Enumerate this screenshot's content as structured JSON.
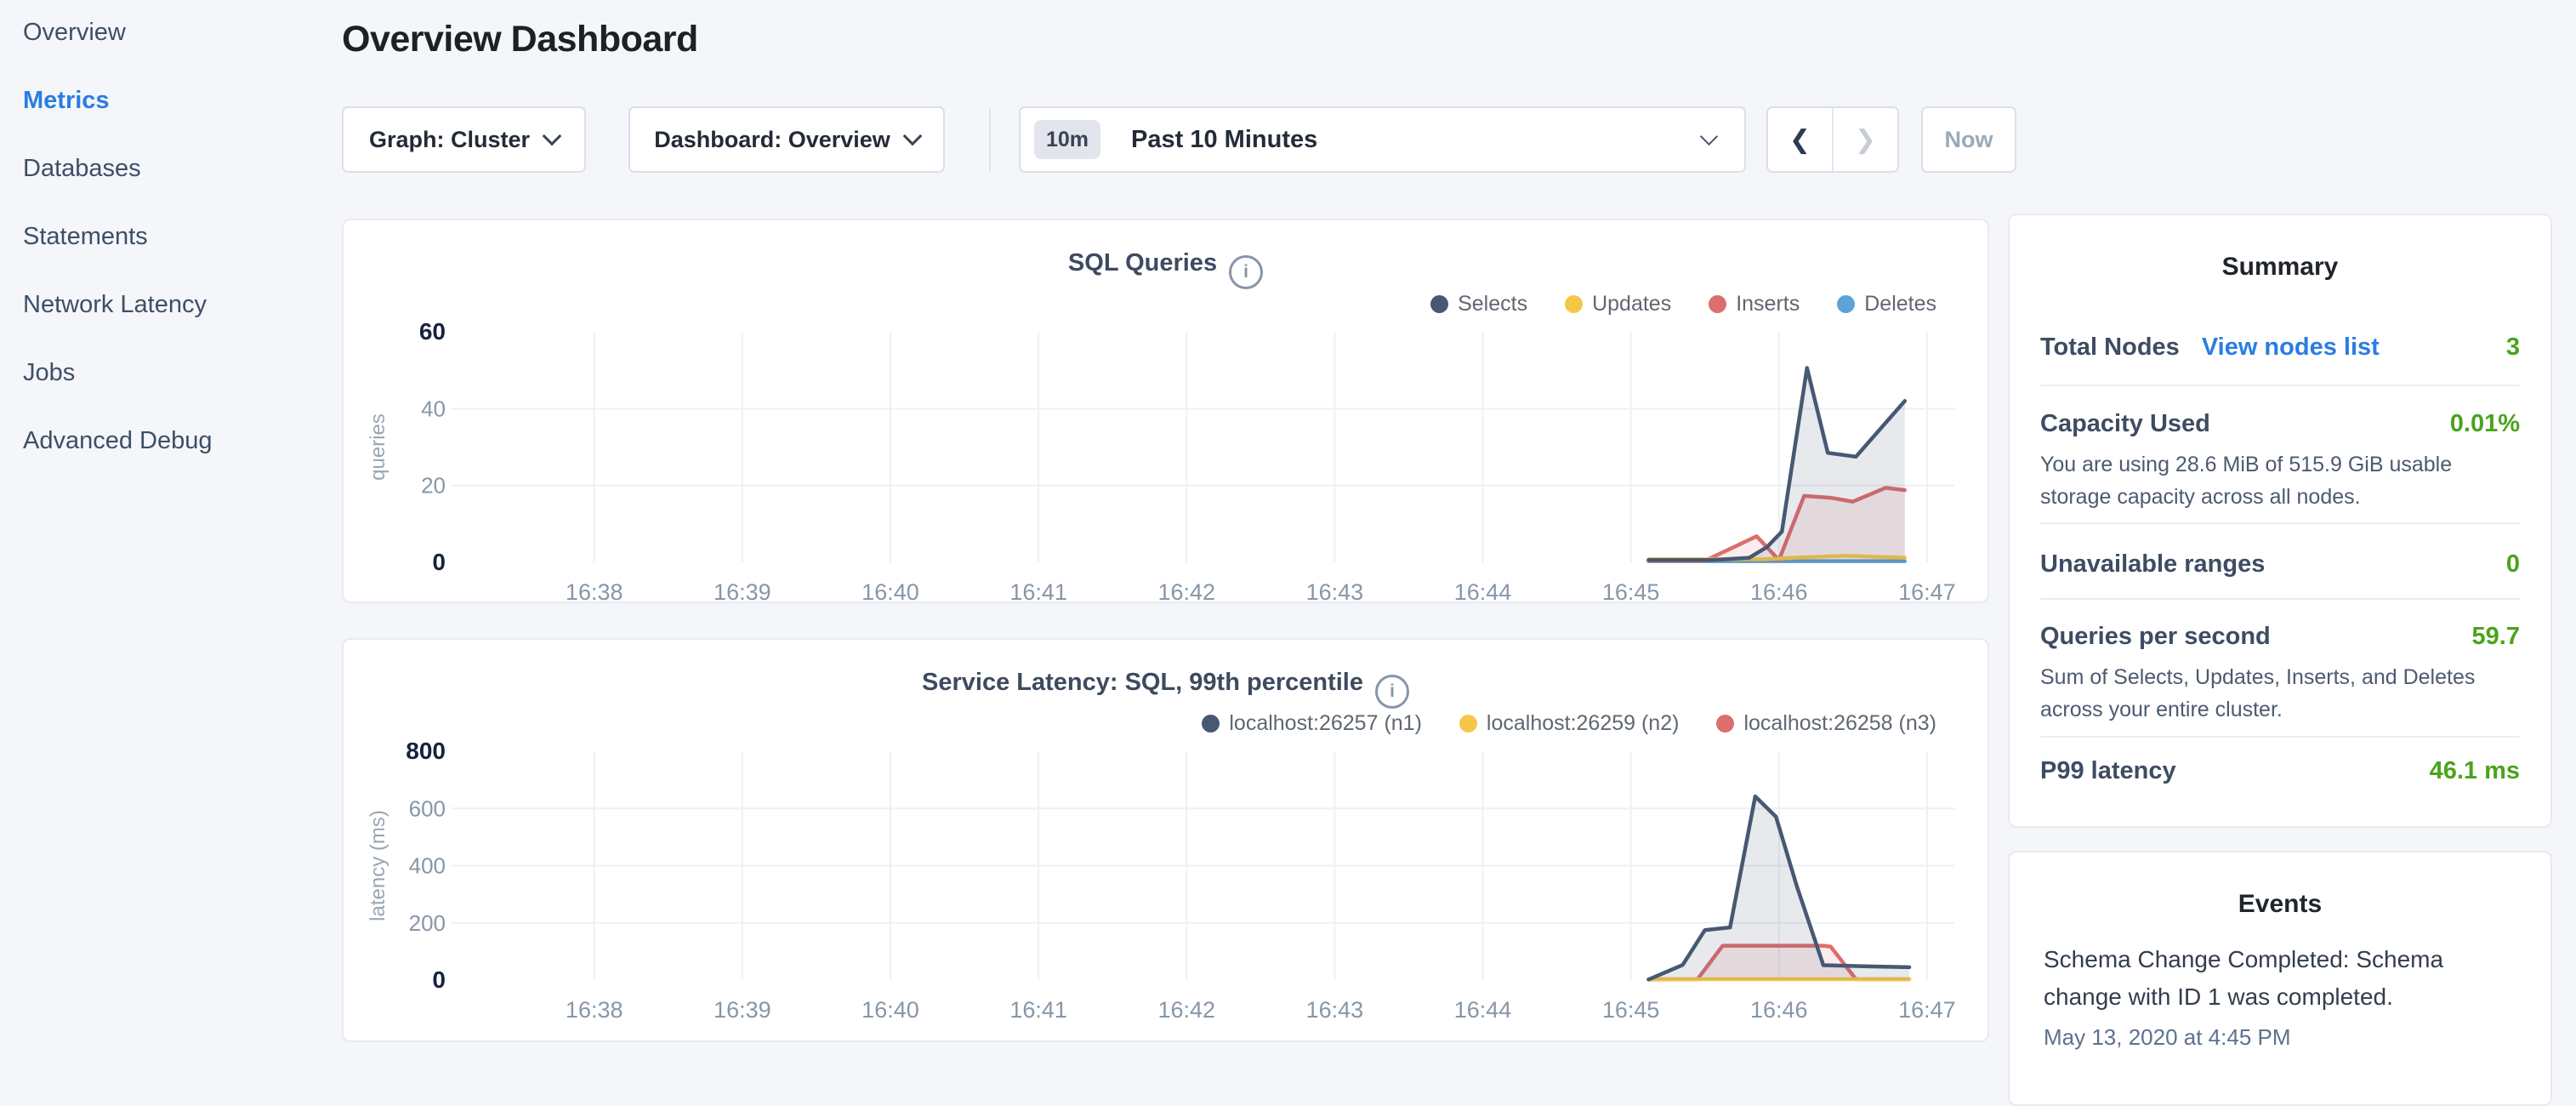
{
  "sidebar": {
    "items": [
      {
        "label": "Overview",
        "active": false
      },
      {
        "label": "Metrics",
        "active": true
      },
      {
        "label": "Databases",
        "active": false
      },
      {
        "label": "Statements",
        "active": false
      },
      {
        "label": "Network Latency",
        "active": false
      },
      {
        "label": "Jobs",
        "active": false
      },
      {
        "label": "Advanced Debug",
        "active": false
      }
    ]
  },
  "header": {
    "title": "Overview Dashboard"
  },
  "toolbar": {
    "graph_dropdown": {
      "label": "Graph: Cluster"
    },
    "dashboard_dropdown": {
      "label": "Dashboard: Overview"
    },
    "time_picker": {
      "badge": "10m",
      "label": "Past 10 Minutes"
    },
    "now_label": "Now",
    "icons": {
      "prev": "❮",
      "next": "❯",
      "info": "i"
    }
  },
  "colors": {
    "accent_blue": "#2a7de1",
    "positive_green": "#4aa31c",
    "series_navy": "#475872",
    "series_yellow": "#f4c748",
    "series_red": "#dd6e6e",
    "series_blue": "#5ba3d8"
  },
  "summary": {
    "title": "Summary",
    "rows": [
      {
        "label": "Total Nodes",
        "link": "View nodes list",
        "value": "3"
      },
      {
        "label": "Capacity Used",
        "value": "0.01%",
        "description": "You are using 28.6 MiB of 515.9 GiB usable storage capacity across all nodes."
      },
      {
        "label": "Unavailable ranges",
        "value": "0"
      },
      {
        "label": "Queries per second",
        "value": "59.7",
        "description": "Sum of Selects, Updates, Inserts, and Deletes across your entire cluster."
      },
      {
        "label": "P99 latency",
        "value": "46.1 ms"
      }
    ]
  },
  "events": {
    "title": "Events",
    "items": [
      {
        "text": "Schema Change Completed: Schema change with ID 1 was completed.",
        "timestamp": "May 13, 2020 at 4:45 PM"
      }
    ]
  },
  "chart_data": [
    {
      "type": "line",
      "title": "SQL Queries",
      "ylabel": "queries",
      "xlabel": "",
      "grid": true,
      "legend_position": "top-right",
      "xlim": [
        37.1,
        47.15
      ],
      "ylim": [
        0,
        60
      ],
      "y_ticks": [
        0,
        20,
        40,
        60
      ],
      "x_ticks": [
        {
          "value": 38,
          "label": "16:38"
        },
        {
          "value": 39,
          "label": "16:39"
        },
        {
          "value": 40,
          "label": "16:40"
        },
        {
          "value": 41,
          "label": "16:41"
        },
        {
          "value": 42,
          "label": "16:42"
        },
        {
          "value": 43,
          "label": "16:43"
        },
        {
          "value": 44,
          "label": "16:44"
        },
        {
          "value": 45,
          "label": "16:45"
        },
        {
          "value": 46,
          "label": "16:46"
        },
        {
          "value": 47,
          "label": "16:47"
        }
      ],
      "series": [
        {
          "name": "Selects",
          "color": "#475872",
          "fill": "rgba(71,88,114,0.13)",
          "points": [
            [
              45.12,
              0.6
            ],
            [
              45.55,
              0.6
            ],
            [
              45.8,
              1.2
            ],
            [
              45.92,
              4
            ],
            [
              46.02,
              8
            ],
            [
              46.19,
              50.6
            ],
            [
              46.33,
              28.5
            ],
            [
              46.52,
              27.5
            ],
            [
              46.85,
              42
            ]
          ]
        },
        {
          "name": "Updates",
          "color": "#f4c748",
          "fill": "none",
          "points": [
            [
              45.12,
              0.8
            ],
            [
              45.9,
              0.8
            ],
            [
              46.1,
              1.2
            ],
            [
              46.45,
              1.7
            ],
            [
              46.85,
              1.2
            ]
          ]
        },
        {
          "name": "Inserts",
          "color": "#dd6e6e",
          "fill": "rgba(221,110,110,0.12)",
          "points": [
            [
              45.12,
              0.4
            ],
            [
              45.5,
              0.4
            ],
            [
              45.85,
              6.8
            ],
            [
              46.0,
              0.6
            ],
            [
              46.17,
              17.3
            ],
            [
              46.35,
              16.8
            ],
            [
              46.5,
              15.8
            ],
            [
              46.72,
              19.4
            ],
            [
              46.85,
              18.8
            ]
          ]
        },
        {
          "name": "Deletes",
          "color": "#5ba3d8",
          "fill": "none",
          "points": [
            [
              45.12,
              0.3
            ],
            [
              46.85,
              0.3
            ]
          ]
        }
      ]
    },
    {
      "type": "line",
      "title": "Service Latency: SQL, 99th percentile",
      "ylabel": "latency (ms)",
      "xlabel": "",
      "grid": true,
      "legend_position": "top-right",
      "xlim": [
        37.1,
        47.15
      ],
      "ylim": [
        0,
        800
      ],
      "y_ticks": [
        0,
        200,
        400,
        600,
        800
      ],
      "x_ticks": [
        {
          "value": 38,
          "label": "16:38"
        },
        {
          "value": 39,
          "label": "16:39"
        },
        {
          "value": 40,
          "label": "16:40"
        },
        {
          "value": 41,
          "label": "16:41"
        },
        {
          "value": 42,
          "label": "16:42"
        },
        {
          "value": 43,
          "label": "16:43"
        },
        {
          "value": 44,
          "label": "16:44"
        },
        {
          "value": 45,
          "label": "16:45"
        },
        {
          "value": 46,
          "label": "16:46"
        },
        {
          "value": 47,
          "label": "16:47"
        }
      ],
      "series": [
        {
          "name": "localhost:26257 (n1)",
          "color": "#475872",
          "fill": "rgba(71,88,114,0.13)",
          "points": [
            [
              45.12,
              2
            ],
            [
              45.35,
              53
            ],
            [
              45.5,
              175
            ],
            [
              45.67,
              184
            ],
            [
              45.84,
              642
            ],
            [
              45.98,
              571
            ],
            [
              46.12,
              330
            ],
            [
              46.3,
              52
            ],
            [
              46.6,
              48
            ],
            [
              46.88,
              45
            ]
          ]
        },
        {
          "name": "localhost:26259 (n2)",
          "color": "#f4c748",
          "fill": "none",
          "points": [
            [
              45.12,
              3
            ],
            [
              46.88,
              3
            ]
          ]
        },
        {
          "name": "localhost:26258 (n3)",
          "color": "#dd6e6e",
          "fill": "rgba(221,110,110,0.12)",
          "points": [
            [
              45.12,
              2
            ],
            [
              45.45,
              3
            ],
            [
              45.62,
              120
            ],
            [
              46.3,
              120
            ],
            [
              46.35,
              117
            ],
            [
              46.52,
              3
            ],
            [
              46.88,
              3
            ]
          ]
        }
      ]
    }
  ]
}
